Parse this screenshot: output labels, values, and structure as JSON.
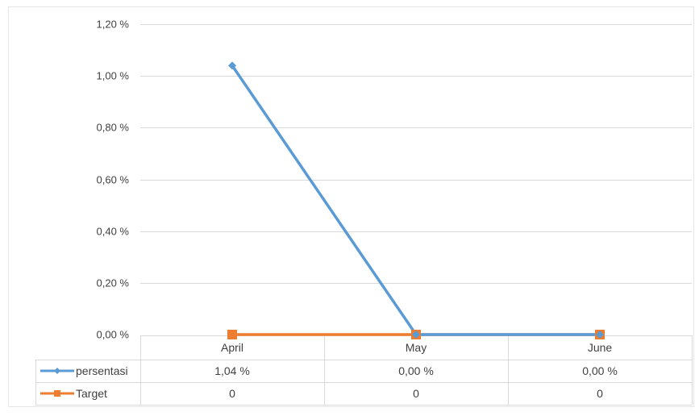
{
  "chart_data": {
    "type": "line",
    "title": "",
    "xlabel": "",
    "ylabel": "",
    "categories": [
      "April",
      "May",
      "June"
    ],
    "ylim": [
      0,
      1.2
    ],
    "y_ticks": [
      "0,00 %",
      "0,20 %",
      "0,40 %",
      "0,60 %",
      "0,80 %",
      "1,00 %",
      "1,20 %"
    ],
    "grid": true,
    "legend": "data-table",
    "series": [
      {
        "name": "persentasi",
        "values": [
          1.04,
          0,
          0
        ],
        "labels": [
          "1,04 %",
          "0,00 %",
          "0,00 %"
        ],
        "color": "#5b9bd5",
        "marker": "diamond"
      },
      {
        "name": "Target",
        "values": [
          0,
          0,
          0
        ],
        "labels": [
          "0",
          "0",
          "0"
        ],
        "color": "#ed7d31",
        "marker": "square"
      }
    ]
  }
}
